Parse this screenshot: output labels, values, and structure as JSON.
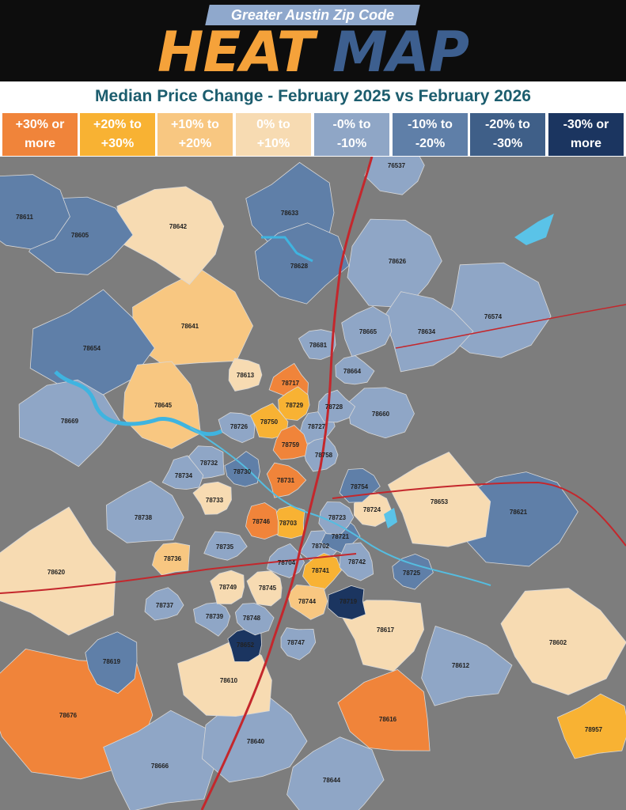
{
  "header": {
    "subtitle": "Greater Austin Zip Code",
    "title_part1": "HEAT",
    "title_part2": "MAP"
  },
  "map_title": "Median Price Change - February 2025 vs February 2026",
  "legend": [
    {
      "label": "+30% or\nmore",
      "color": "#f0843a"
    },
    {
      "label": "+20% to\n+30%",
      "color": "#f8b233"
    },
    {
      "label": "+10% to\n+20%",
      "color": "#f8c781"
    },
    {
      "label": "0% to\n+10%",
      "color": "#f7dbb2"
    },
    {
      "label": "-0% to\n-10%",
      "color": "#8fa6c6"
    },
    {
      "label": "-10% to\n-20%",
      "color": "#5f7fa8"
    },
    {
      "label": "-20% to\n-30%",
      "color": "#3f5f88"
    },
    {
      "label": "-30% or\nmore",
      "color": "#1b3560"
    }
  ],
  "zips": [
    {
      "zip": "76537",
      "level": 4
    },
    {
      "zip": "78611",
      "level": 5
    },
    {
      "zip": "78605",
      "level": 5
    },
    {
      "zip": "78642",
      "level": 3
    },
    {
      "zip": "78633",
      "level": 5
    },
    {
      "zip": "78628",
      "level": 5
    },
    {
      "zip": "78626",
      "level": 4
    },
    {
      "zip": "78641",
      "level": 2
    },
    {
      "zip": "78654",
      "level": 5
    },
    {
      "zip": "78665",
      "level": 4
    },
    {
      "zip": "78634",
      "level": 4
    },
    {
      "zip": "76574",
      "level": 4
    },
    {
      "zip": "78681",
      "level": 4
    },
    {
      "zip": "78664",
      "level": 4
    },
    {
      "zip": "78613",
      "level": 3
    },
    {
      "zip": "78717",
      "level": 0
    },
    {
      "zip": "78645",
      "level": 2
    },
    {
      "zip": "78729",
      "level": 1
    },
    {
      "zip": "78728",
      "level": 4
    },
    {
      "zip": "78660",
      "level": 4
    },
    {
      "zip": "78669",
      "level": 4
    },
    {
      "zip": "78726",
      "level": 4
    },
    {
      "zip": "78750",
      "level": 1
    },
    {
      "zip": "78727",
      "level": 4
    },
    {
      "zip": "78759",
      "level": 0
    },
    {
      "zip": "78758",
      "level": 4
    },
    {
      "zip": "78732",
      "level": 4
    },
    {
      "zip": "78730",
      "level": 5
    },
    {
      "zip": "78734",
      "level": 4
    },
    {
      "zip": "78731",
      "level": 0
    },
    {
      "zip": "78754",
      "level": 5
    },
    {
      "zip": "78653",
      "level": 3
    },
    {
      "zip": "78733",
      "level": 3
    },
    {
      "zip": "78724",
      "level": 3
    },
    {
      "zip": "78738",
      "level": 4
    },
    {
      "zip": "78746",
      "level": 0
    },
    {
      "zip": "78703",
      "level": 1
    },
    {
      "zip": "78723",
      "level": 4
    },
    {
      "zip": "78621",
      "level": 5
    },
    {
      "zip": "78721",
      "level": 5
    },
    {
      "zip": "78702",
      "level": 4
    },
    {
      "zip": "78735",
      "level": 4
    },
    {
      "zip": "78736",
      "level": 2
    },
    {
      "zip": "78704",
      "level": 4
    },
    {
      "zip": "78742",
      "level": 4
    },
    {
      "zip": "78741",
      "level": 1
    },
    {
      "zip": "78725",
      "level": 5
    },
    {
      "zip": "78620",
      "level": 3
    },
    {
      "zip": "78749",
      "level": 3
    },
    {
      "zip": "78745",
      "level": 3
    },
    {
      "zip": "78737",
      "level": 4
    },
    {
      "zip": "78744",
      "level": 2
    },
    {
      "zip": "78719",
      "level": 7
    },
    {
      "zip": "78739",
      "level": 4
    },
    {
      "zip": "78748",
      "level": 4
    },
    {
      "zip": "78617",
      "level": 3
    },
    {
      "zip": "78602",
      "level": 3
    },
    {
      "zip": "78652",
      "level": 7
    },
    {
      "zip": "78747",
      "level": 4
    },
    {
      "zip": "78619",
      "level": 5
    },
    {
      "zip": "78612",
      "level": 4
    },
    {
      "zip": "78610",
      "level": 3
    },
    {
      "zip": "78676",
      "level": 0
    },
    {
      "zip": "78616",
      "level": 0
    },
    {
      "zip": "78640",
      "level": 4
    },
    {
      "zip": "78957",
      "level": 1
    },
    {
      "zip": "78666",
      "level": 4
    },
    {
      "zip": "78644",
      "level": 4
    }
  ]
}
